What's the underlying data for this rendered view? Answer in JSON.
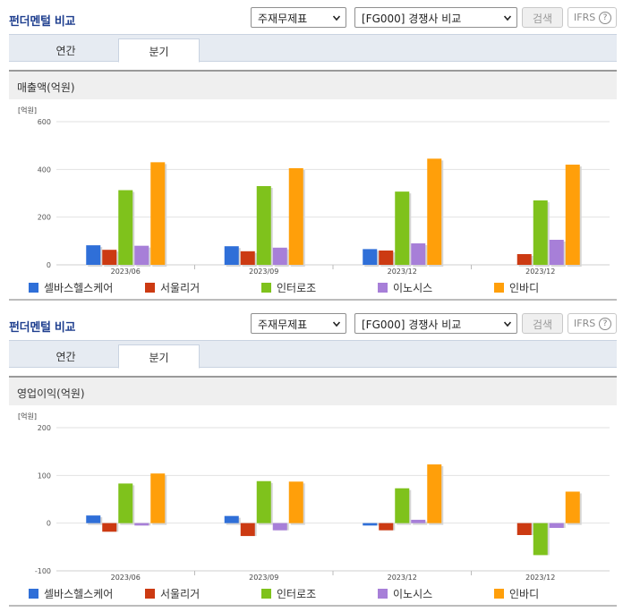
{
  "panels": [
    {
      "title": "펀더멘털 비교",
      "select_1": "주재무제표",
      "select_2": "[FG000] 경쟁사 비교",
      "search_label": "검색",
      "ifrs_label": "IFRS",
      "ifrs_help": "?",
      "tabs": [
        "연간",
        "분기"
      ],
      "active_tab": "분기",
      "chart_heading": "매출액(억원)"
    },
    {
      "title": "펀더멘털 비교",
      "select_1": "주재무제표",
      "select_2": "[FG000] 경쟁사 비교",
      "search_label": "검색",
      "ifrs_label": "IFRS",
      "ifrs_help": "?",
      "tabs": [
        "연간",
        "분기"
      ],
      "active_tab": "분기",
      "chart_heading": "영업이익(억원)"
    }
  ],
  "colors": {
    "셀바스헬스케어": "#2f6fd8",
    "서울리거": "#cc3a12",
    "인터로조": "#7fc21c",
    "이노시스": "#a77fd8",
    "인바디": "#ff9f0a"
  },
  "chart_data": [
    {
      "type": "bar",
      "title": "매출액(억원)",
      "unit": "[억원]",
      "categories": [
        "2023/06",
        "2023/09",
        "2023/12",
        "2023/12"
      ],
      "ylim": [
        0,
        600
      ],
      "yticks": [
        0,
        200,
        400,
        600
      ],
      "series": [
        {
          "name": "셀바스헬스케어",
          "values": [
            82,
            78,
            66,
            null
          ]
        },
        {
          "name": "서울리거",
          "values": [
            63,
            57,
            60,
            45
          ]
        },
        {
          "name": "인터로조",
          "values": [
            313,
            330,
            307,
            270
          ]
        },
        {
          "name": "이노시스",
          "values": [
            80,
            72,
            90,
            105
          ]
        },
        {
          "name": "인바디",
          "values": [
            430,
            405,
            445,
            420
          ]
        }
      ],
      "grid": true,
      "legend": "bottom"
    },
    {
      "type": "bar",
      "title": "영업이익(억원)",
      "unit": "[억원]",
      "categories": [
        "2023/06",
        "2023/09",
        "2023/12",
        "2023/12"
      ],
      "ylim": [
        -100,
        200
      ],
      "yticks": [
        -100,
        0,
        100,
        200
      ],
      "series": [
        {
          "name": "셀바스헬스케어",
          "values": [
            16,
            15,
            -5,
            null
          ]
        },
        {
          "name": "서울리거",
          "values": [
            -18,
            -27,
            -15,
            -25
          ]
        },
        {
          "name": "인터로조",
          "values": [
            83,
            88,
            73,
            -67
          ]
        },
        {
          "name": "이노시스",
          "values": [
            -5,
            -15,
            7,
            -10
          ]
        },
        {
          "name": "인바디",
          "values": [
            104,
            87,
            123,
            66
          ]
        }
      ],
      "grid": true,
      "legend": "bottom"
    }
  ]
}
